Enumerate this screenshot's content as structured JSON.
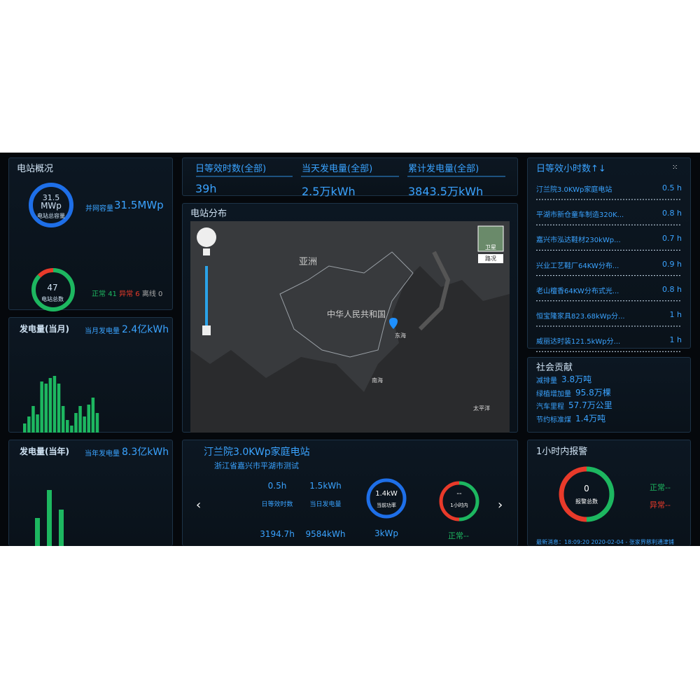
{
  "overview": {
    "title": "电站概况",
    "capacity_ring": {
      "value": "31.5",
      "unit": "MWp",
      "label": "电站总容量"
    },
    "grid_capacity": {
      "label": "并网容量",
      "value": "31.5MWp"
    },
    "count_ring": {
      "value": "47",
      "label": "电站总数"
    },
    "status": {
      "normal_label": "正常",
      "normal": 41,
      "abnormal_label": "异常",
      "abnormal": 6,
      "offline_label": "离线",
      "offline": 0
    }
  },
  "monthly": {
    "title": "发电量(当月)",
    "label": "当月发电量",
    "value": "2.4亿kWh",
    "bars": [
      13,
      23,
      38,
      26,
      73,
      70,
      78,
      81,
      70,
      38,
      18,
      10,
      28,
      38,
      23,
      40,
      50,
      28
    ]
  },
  "yearly": {
    "title": "发电量(当年)",
    "label": "当年发电量",
    "value": "8.3亿kWh",
    "bars": [
      40,
      80,
      52
    ]
  },
  "kpis": [
    {
      "label": "日等效时数(全部)",
      "value": "39h"
    },
    {
      "label": "当天发电量(全部)",
      "value": "2.5万kWh"
    },
    {
      "label": "累计发电量(全部)",
      "value": "3843.5万kWh"
    }
  ],
  "map": {
    "title": "电站分布",
    "labels": [
      "亚洲",
      "中华人民共和国",
      "东海",
      "南海",
      "太平洋"
    ],
    "buttons": [
      "卫星",
      "路况"
    ]
  },
  "station": {
    "name": "汀兰院3.0KWp家庭电站",
    "address": "浙江省嘉兴市平湖市测试",
    "metrics": [
      {
        "value": "0.5h",
        "label": "日等效时数",
        "total": "3194.7h"
      },
      {
        "value": "1.5kWh",
        "label": "当日发电量",
        "total": "9584kWh"
      }
    ],
    "power_ring": {
      "value": "1.4kW",
      "label": "当前功率"
    },
    "capacity": "3kWp",
    "hour_ring": {
      "value": "--",
      "label": "1小时内"
    },
    "status": "正常--"
  },
  "ranking": {
    "title": "日等效小时数↑↓",
    "items": [
      {
        "name": "汀兰院3.0KWp家庭电站",
        "value": "0.5 h"
      },
      {
        "name": "平湖市新仓童车制造320K...",
        "value": "0.8 h"
      },
      {
        "name": "嘉兴市泓达鞋材230kWp...",
        "value": "0.7 h"
      },
      {
        "name": "兴业工艺鞋厂64KW分布...",
        "value": "0.9 h"
      },
      {
        "name": "老山檀香64KW分布式光...",
        "value": "0.8 h"
      },
      {
        "name": "恒宝隆家具823.68kWp分...",
        "value": "1 h"
      },
      {
        "name": "威丽达时装121.5kWp分...",
        "value": "1 h"
      }
    ]
  },
  "social": {
    "title": "社会贡献",
    "items": [
      {
        "label": "减排量",
        "value": "3.8万吨"
      },
      {
        "label": "绿植增加量",
        "value": "95.8万棵"
      },
      {
        "label": "汽车里程",
        "value": "57.7万公里"
      },
      {
        "label": "节约标准煤",
        "value": "1.4万吨"
      }
    ]
  },
  "alarm": {
    "title": "1小时内报警",
    "total": "0",
    "total_label": "报警总数",
    "normal": "正常--",
    "abnormal": "异常--",
    "latest": "最新消息：18:09:20 2020-02-04 - 张家界慈利通津铺"
  }
}
